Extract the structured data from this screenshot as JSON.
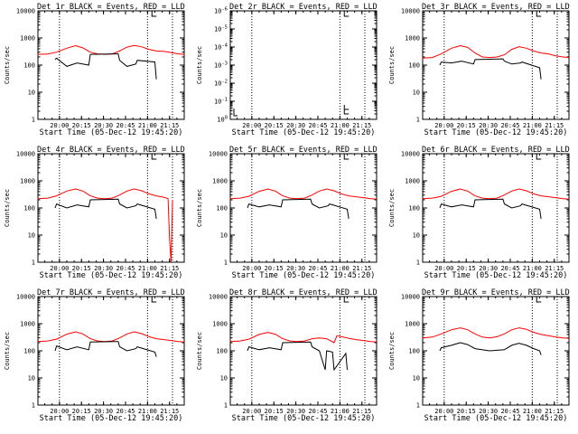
{
  "colors": {
    "background": "#ffffff",
    "events": "#000000",
    "lld": "#ff0000"
  },
  "chart_data": [
    {
      "type": "line",
      "title": "Det 1r BLACK = Events, RED = LLD",
      "xlabel": "Start Time (05-Dec-12 19:45:20)",
      "ylabel": "Counts/sec",
      "xlim": [
        "19:45:20",
        "21:25:00"
      ],
      "yscale": "log",
      "ylim": [
        1,
        10000
      ],
      "xticks": [
        "20:00",
        "20:15",
        "20:30",
        "20:45",
        "21:00",
        "21:15"
      ],
      "yticks": [
        "1",
        "10",
        "100",
        "1000",
        "10000"
      ],
      "grid": false,
      "vlines_dotted": [
        "20:00",
        "21:00",
        "21:17"
      ],
      "series": [
        {
          "color": "#ff0000",
          "x": [
            "19:45",
            "19:52",
            "19:58",
            "20:05",
            "20:11",
            "20:16",
            "20:21",
            "20:26",
            "20:31",
            "20:36",
            "20:41",
            "20:46",
            "20:51",
            "20:56",
            "21:01",
            "21:06",
            "21:11",
            "21:16",
            "21:21",
            "21:25"
          ],
          "y": [
            250,
            255,
            300,
            420,
            520,
            430,
            300,
            260,
            250,
            260,
            330,
            460,
            530,
            470,
            380,
            330,
            320,
            290,
            260,
            250
          ]
        },
        {
          "color": "#000000",
          "x": [
            "19:57",
            "19:58",
            "20:05",
            "20:12",
            "20:20",
            "20:21",
            "20:40",
            "20:41",
            "20:46",
            "20:52",
            "20:53",
            "21:05",
            "21:06"
          ],
          "y": [
            160,
            180,
            90,
            120,
            100,
            250,
            260,
            150,
            90,
            110,
            150,
            130,
            30
          ]
        }
      ]
    },
    {
      "type": "line",
      "title": "Det 2r BLACK = Events, RED = LLD",
      "xlabel": "Start Time (05-Dec-12 19:45:20)",
      "ylabel": "Counts/sec",
      "xlim": [
        "19:45:20",
        "21:25:00"
      ],
      "yscale": "log",
      "xticks": [
        "20:00",
        "20:15",
        "20:30",
        "20:45",
        "21:00",
        "21:15"
      ],
      "yticks": [
        "10^0",
        "10^-1",
        "10^-2",
        "10^-3",
        "10^-4",
        "10^-5",
        "10^-6"
      ],
      "grid": false,
      "vlines_dotted": [
        "20:00",
        "21:00",
        "21:17"
      ],
      "series": []
    },
    {
      "type": "line",
      "title": "Det 3r BLACK = Events, RED = LLD",
      "xlabel": "Start Time (05-Dec-12 19:45:20)",
      "ylabel": "Counts/sec",
      "xlim": [
        "19:45:20",
        "21:25:00"
      ],
      "yscale": "log",
      "ylim": [
        1,
        10000
      ],
      "xticks": [
        "20:00",
        "20:15",
        "20:30",
        "20:45",
        "21:00",
        "21:15"
      ],
      "yticks": [
        "1",
        "10",
        "100",
        "1000",
        "10000"
      ],
      "grid": false,
      "vlines_dotted": [
        "20:00",
        "21:00",
        "21:17"
      ],
      "series": [
        {
          "color": "#ff0000",
          "x": [
            "19:45",
            "19:52",
            "19:58",
            "20:05",
            "20:11",
            "20:16",
            "20:21",
            "20:26",
            "20:31",
            "20:36",
            "20:41",
            "20:46",
            "20:51",
            "20:56",
            "21:01",
            "21:06",
            "21:11",
            "21:16",
            "21:21",
            "21:25"
          ],
          "y": [
            180,
            190,
            260,
            420,
            520,
            450,
            280,
            200,
            190,
            200,
            240,
            380,
            480,
            420,
            330,
            280,
            260,
            220,
            200,
            190
          ]
        },
        {
          "color": "#000000",
          "x": [
            "19:57",
            "19:58",
            "20:05",
            "20:12",
            "20:20",
            "20:21",
            "20:40",
            "20:41",
            "20:46",
            "20:52",
            "20:53",
            "21:05",
            "21:06"
          ],
          "y": [
            100,
            130,
            120,
            140,
            110,
            160,
            170,
            140,
            110,
            120,
            130,
            80,
            30
          ]
        }
      ]
    },
    {
      "type": "line",
      "title": "Det 4r BLACK = Events, RED = LLD",
      "xlabel": "Start Time (05-Dec-12 19:45:20)",
      "ylabel": "Counts/sec",
      "xlim": [
        "19:45:20",
        "21:25:00"
      ],
      "yscale": "log",
      "ylim": [
        1,
        10000
      ],
      "xticks": [
        "20:00",
        "20:15",
        "20:30",
        "20:45",
        "21:00",
        "21:15"
      ],
      "yticks": [
        "1",
        "10",
        "100",
        "1000",
        "10000"
      ],
      "grid": false,
      "vlines_dotted": [
        "20:00",
        "21:00",
        "21:17"
      ],
      "series": [
        {
          "color": "#ff0000",
          "x": [
            "19:45",
            "19:52",
            "19:58",
            "20:05",
            "20:11",
            "20:16",
            "20:21",
            "20:26",
            "20:31",
            "20:36",
            "20:41",
            "20:46",
            "20:51",
            "20:56",
            "21:01",
            "21:06",
            "21:11",
            "21:14",
            "21:15",
            "21:16",
            "21:17"
          ],
          "y": [
            220,
            230,
            280,
            420,
            500,
            420,
            280,
            230,
            220,
            230,
            300,
            420,
            500,
            430,
            330,
            280,
            250,
            220,
            8,
            1,
            200
          ]
        },
        {
          "color": "#000000",
          "x": [
            "19:57",
            "19:58",
            "20:05",
            "20:12",
            "20:20",
            "20:21",
            "20:40",
            "20:41",
            "20:46",
            "20:52",
            "20:53",
            "21:05",
            "21:06"
          ],
          "y": [
            100,
            140,
            100,
            130,
            110,
            200,
            210,
            140,
            100,
            120,
            140,
            90,
            40
          ]
        }
      ]
    },
    {
      "type": "line",
      "title": "Det 5r BLACK = Events, RED = LLD",
      "xlabel": "Start Time (05-Dec-12 19:45:20)",
      "ylabel": "Counts/sec",
      "xlim": [
        "19:45:20",
        "21:25:00"
      ],
      "yscale": "log",
      "ylim": [
        1,
        10000
      ],
      "xticks": [
        "20:00",
        "20:15",
        "20:30",
        "20:45",
        "21:00",
        "21:15"
      ],
      "yticks": [
        "1",
        "10",
        "100",
        "1000",
        "10000"
      ],
      "grid": false,
      "vlines_dotted": [
        "20:00",
        "21:00",
        "21:17"
      ],
      "series": [
        {
          "color": "#ff0000",
          "x": [
            "19:45",
            "19:52",
            "19:58",
            "20:05",
            "20:11",
            "20:16",
            "20:21",
            "20:26",
            "20:31",
            "20:36",
            "20:41",
            "20:46",
            "20:51",
            "20:56",
            "21:01",
            "21:06",
            "21:11",
            "21:16",
            "21:21",
            "21:25"
          ],
          "y": [
            220,
            230,
            270,
            410,
            500,
            420,
            280,
            230,
            220,
            230,
            300,
            420,
            500,
            430,
            330,
            280,
            260,
            240,
            220,
            210
          ]
        },
        {
          "color": "#000000",
          "x": [
            "19:57",
            "19:58",
            "20:05",
            "20:12",
            "20:20",
            "20:21",
            "20:40",
            "20:41",
            "20:46",
            "20:52",
            "20:53",
            "21:05",
            "21:06"
          ],
          "y": [
            100,
            140,
            110,
            130,
            110,
            200,
            210,
            140,
            100,
            120,
            140,
            90,
            40
          ]
        }
      ]
    },
    {
      "type": "line",
      "title": "Det 6r BLACK = Events, RED = LLD",
      "xlabel": "Start Time (05-Dec-12 19:45:20)",
      "ylabel": "Counts/sec",
      "xlim": [
        "19:45:20",
        "21:25:00"
      ],
      "yscale": "log",
      "ylim": [
        1,
        10000
      ],
      "xticks": [
        "20:00",
        "20:15",
        "20:30",
        "20:45",
        "21:00",
        "21:15"
      ],
      "yticks": [
        "1",
        "10",
        "100",
        "1000",
        "10000"
      ],
      "grid": false,
      "vlines_dotted": [
        "20:00",
        "21:00",
        "21:17"
      ],
      "series": [
        {
          "color": "#ff0000",
          "x": [
            "19:45",
            "19:52",
            "19:58",
            "20:05",
            "20:11",
            "20:16",
            "20:21",
            "20:26",
            "20:31",
            "20:36",
            "20:41",
            "20:46",
            "20:51",
            "20:56",
            "21:01",
            "21:06",
            "21:11",
            "21:16",
            "21:21",
            "21:25"
          ],
          "y": [
            220,
            230,
            270,
            410,
            500,
            420,
            280,
            230,
            220,
            230,
            300,
            420,
            500,
            430,
            330,
            280,
            260,
            240,
            220,
            210
          ]
        },
        {
          "color": "#000000",
          "x": [
            "19:57",
            "19:58",
            "20:05",
            "20:12",
            "20:20",
            "20:21",
            "20:40",
            "20:41",
            "20:46",
            "20:52",
            "20:53",
            "21:05",
            "21:06"
          ],
          "y": [
            100,
            140,
            110,
            130,
            110,
            200,
            210,
            140,
            100,
            120,
            140,
            90,
            40
          ]
        }
      ]
    },
    {
      "type": "line",
      "title": "Det 7r BLACK = Events, RED = LLD",
      "xlabel": "Start Time (05-Dec-12 19:45:20)",
      "ylabel": "Counts/sec",
      "xlim": [
        "19:45:20",
        "21:25:00"
      ],
      "yscale": "log",
      "ylim": [
        1,
        10000
      ],
      "xticks": [
        "20:00",
        "20:15",
        "20:30",
        "20:45",
        "21:00",
        "21:15"
      ],
      "yticks": [
        "1",
        "10",
        "100",
        "1000",
        "10000"
      ],
      "grid": false,
      "vlines_dotted": [
        "20:00",
        "21:00",
        "21:17"
      ],
      "series": [
        {
          "color": "#ff0000",
          "x": [
            "19:45",
            "19:52",
            "19:58",
            "20:05",
            "20:11",
            "20:16",
            "20:21",
            "20:26",
            "20:31",
            "20:36",
            "20:41",
            "20:46",
            "20:51",
            "20:56",
            "21:01",
            "21:06",
            "21:11",
            "21:16",
            "21:21",
            "21:25"
          ],
          "y": [
            220,
            230,
            270,
            410,
            500,
            420,
            280,
            230,
            220,
            230,
            300,
            420,
            500,
            430,
            330,
            280,
            260,
            240,
            220,
            210
          ]
        },
        {
          "color": "#000000",
          "x": [
            "19:57",
            "19:58",
            "20:05",
            "20:12",
            "20:20",
            "20:21",
            "20:40",
            "20:41",
            "20:46",
            "20:52",
            "20:53",
            "21:05",
            "21:06"
          ],
          "y": [
            100,
            150,
            110,
            140,
            110,
            210,
            220,
            140,
            100,
            120,
            140,
            90,
            60
          ]
        }
      ]
    },
    {
      "type": "line",
      "title": "Det 8r BLACK = Events, RED = LLD",
      "xlabel": "Start Time (05-Dec-12 19:45:20)",
      "ylabel": "Counts/sec",
      "xlim": [
        "19:45:20",
        "21:25:00"
      ],
      "yscale": "log",
      "ylim": [
        1,
        10000
      ],
      "xticks": [
        "20:00",
        "20:15",
        "20:30",
        "20:45",
        "21:00",
        "21:15"
      ],
      "yticks": [
        "1",
        "10",
        "100",
        "1000",
        "10000"
      ],
      "grid": false,
      "vlines_dotted": [
        "20:00",
        "21:00",
        "21:17"
      ],
      "series": [
        {
          "color": "#ff0000",
          "x": [
            "19:45",
            "19:52",
            "19:58",
            "20:05",
            "20:11",
            "20:16",
            "20:21",
            "20:26",
            "20:31",
            "20:36",
            "20:41",
            "20:46",
            "20:51",
            "20:56",
            "20:58",
            "21:01",
            "21:06",
            "21:11",
            "21:16",
            "21:21",
            "21:25"
          ],
          "y": [
            220,
            230,
            270,
            400,
            480,
            410,
            280,
            230,
            220,
            230,
            280,
            300,
            280,
            200,
            360,
            330,
            290,
            260,
            240,
            220,
            210
          ]
        },
        {
          "color": "#000000",
          "x": [
            "19:57",
            "19:58",
            "20:05",
            "20:12",
            "20:20",
            "20:21",
            "20:40",
            "20:41",
            "20:46",
            "20:50",
            "20:51",
            "20:55",
            "20:56",
            "21:04",
            "21:05"
          ],
          "y": [
            100,
            140,
            110,
            130,
            110,
            200,
            210,
            140,
            100,
            20,
            100,
            90,
            20,
            80,
            20
          ]
        }
      ]
    },
    {
      "type": "line",
      "title": "Det 9r BLACK = Events, RED = LLD",
      "xlabel": "Start Time (05-Dec-12 19:45:20)",
      "ylabel": "Counts/sec",
      "xlim": [
        "19:45:20",
        "21:25:00"
      ],
      "yscale": "log",
      "ylim": [
        1,
        10000
      ],
      "xticks": [
        "20:00",
        "20:15",
        "20:30",
        "20:45",
        "21:00",
        "21:15"
      ],
      "yticks": [
        "1",
        "10",
        "100",
        "1000",
        "10000"
      ],
      "grid": false,
      "vlines_dotted": [
        "20:00",
        "21:00",
        "21:17"
      ],
      "series": [
        {
          "color": "#ff0000",
          "x": [
            "19:45",
            "19:52",
            "19:58",
            "20:05",
            "20:11",
            "20:16",
            "20:21",
            "20:26",
            "20:31",
            "20:36",
            "20:41",
            "20:46",
            "20:51",
            "20:56",
            "21:01",
            "21:06",
            "21:11",
            "21:16",
            "21:21",
            "21:25"
          ],
          "y": [
            300,
            320,
            420,
            600,
            700,
            600,
            420,
            320,
            300,
            330,
            420,
            600,
            700,
            620,
            480,
            400,
            360,
            320,
            300,
            290
          ]
        },
        {
          "color": "#000000",
          "x": [
            "19:57",
            "19:58",
            "20:05",
            "20:11",
            "20:16",
            "20:21",
            "20:31",
            "20:41",
            "20:46",
            "20:51",
            "20:56",
            "21:01",
            "21:05",
            "21:06"
          ],
          "y": [
            100,
            130,
            160,
            200,
            170,
            120,
            100,
            110,
            160,
            190,
            160,
            120,
            100,
            70
          ]
        }
      ]
    }
  ]
}
